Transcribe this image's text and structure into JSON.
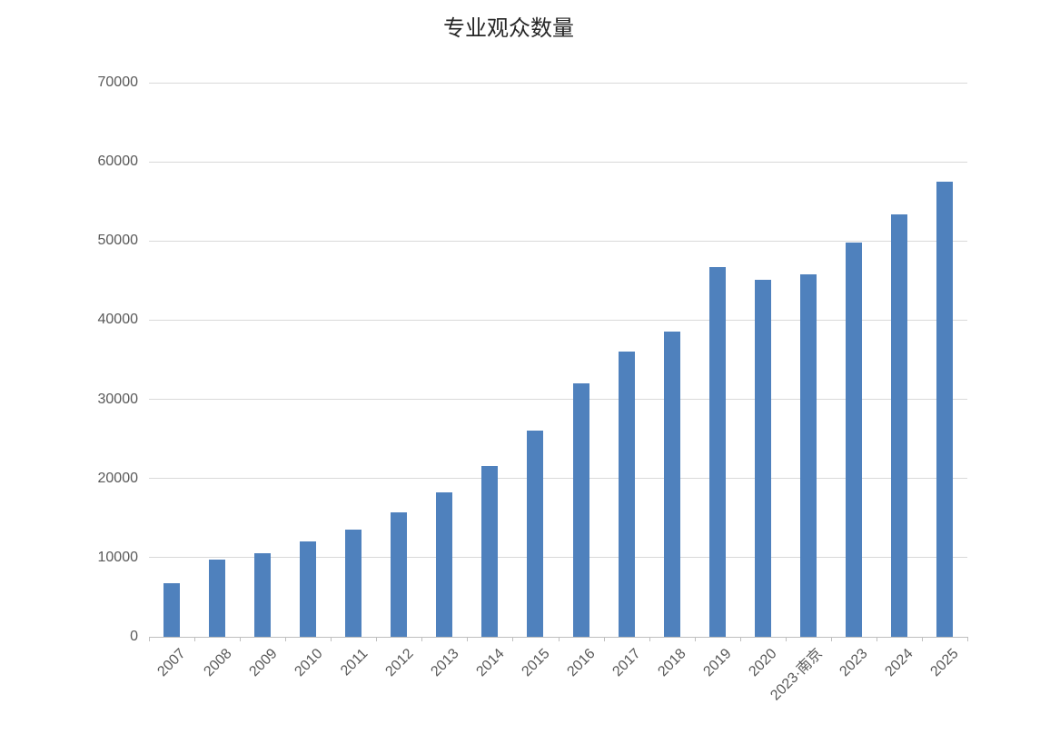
{
  "page": {
    "background_color": "#ffffff"
  },
  "chart_data": {
    "type": "bar",
    "title": "专业观众数量",
    "categories": [
      "2007",
      "2008",
      "2009",
      "2010",
      "2011",
      "2012",
      "2013",
      "2014",
      "2015",
      "2016",
      "2017",
      "2018",
      "2019",
      "2020",
      "2023·南京",
      "2023",
      "2024",
      "2025"
    ],
    "values": [
      6800,
      9700,
      10600,
      12000,
      13500,
      15700,
      18300,
      21600,
      26000,
      32000,
      36000,
      38600,
      46700,
      45100,
      45800,
      49800,
      53400,
      57500
    ],
    "xlabel": "",
    "ylabel": "",
    "ylim": [
      0,
      70000
    ],
    "ytick_step": 10000,
    "yticks": [
      "0",
      "10000",
      "20000",
      "30000",
      "40000",
      "50000",
      "60000",
      "70000"
    ],
    "grid": "horizontal-only",
    "legend": "none",
    "x_label_rotation_deg": -45,
    "bar_color": "#4f81bd",
    "gridline_color": "#d9d9d9",
    "axis_color": "#bfbfbf",
    "tick_label_color": "#595959",
    "title_color": "#262626"
  }
}
